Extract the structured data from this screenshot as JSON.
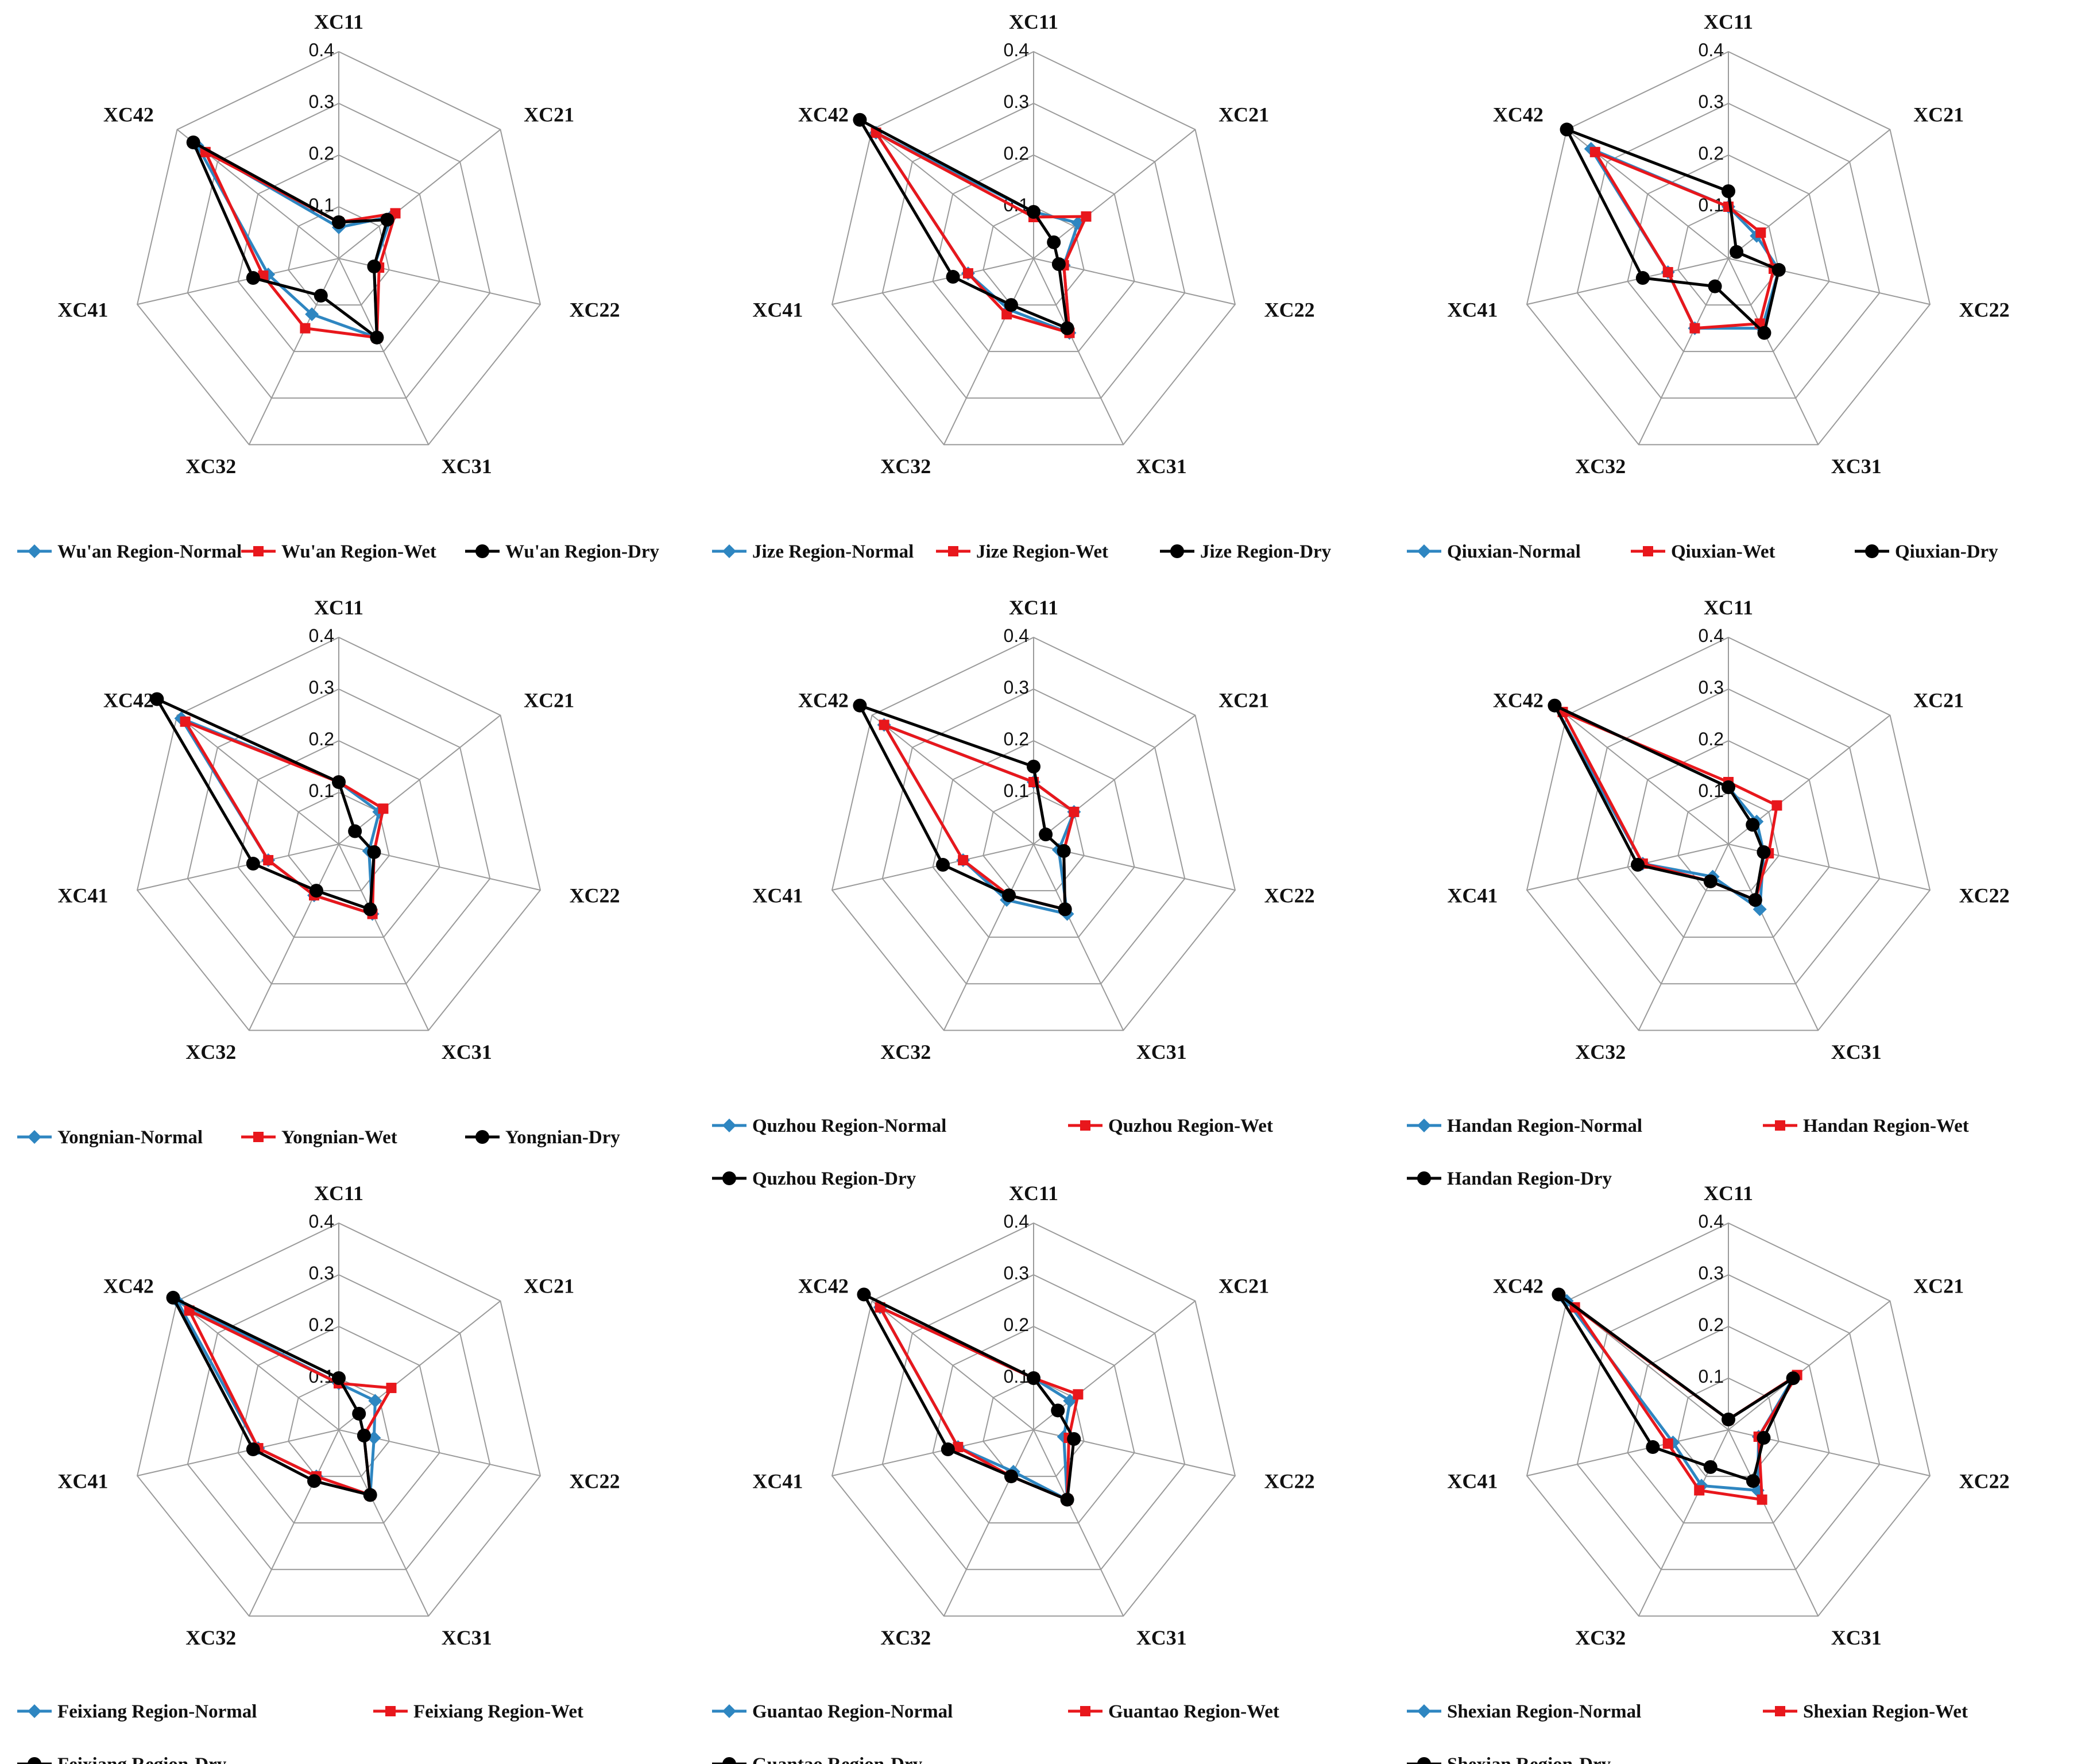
{
  "axis_labels": [
    "XC11",
    "XC21",
    "XC22",
    "XC31",
    "XC32",
    "XC41",
    "XC42"
  ],
  "ticks": [
    "0.1",
    "0.2",
    "0.3",
    "0.4"
  ],
  "colors": {
    "normal": "#2E86C1",
    "wet": "#E8171C",
    "dry": "#000000",
    "grid": "#9A9A9A"
  },
  "chart_data": [
    {
      "type": "radar",
      "title": "",
      "categories": [
        "XC11",
        "XC21",
        "XC22",
        "XC31",
        "XC32",
        "XC41",
        "XC42"
      ],
      "rlim": [
        0,
        0.4
      ],
      "ticks": [
        0.1,
        0.2,
        0.3,
        0.4
      ],
      "legend_layout": "row",
      "series": [
        {
          "name": "Wu'an Region-Normal",
          "color": "#2E86C1",
          "marker": "diamond",
          "values": [
            0.06,
            0.13,
            0.07,
            0.17,
            0.12,
            0.14,
            0.35
          ]
        },
        {
          "name": "Wu'an Region-Wet",
          "color": "#E8171C",
          "marker": "square",
          "values": [
            0.07,
            0.14,
            0.08,
            0.17,
            0.15,
            0.15,
            0.33
          ]
        },
        {
          "name": "Wu'an Region-Dry",
          "color": "#000000",
          "marker": "circle",
          "values": [
            0.07,
            0.12,
            0.07,
            0.17,
            0.08,
            0.17,
            0.36
          ]
        }
      ]
    },
    {
      "type": "radar",
      "title": "",
      "categories": [
        "XC11",
        "XC21",
        "XC22",
        "XC31",
        "XC32",
        "XC41",
        "XC42"
      ],
      "rlim": [
        0,
        0.4
      ],
      "ticks": [
        0.1,
        0.2,
        0.3,
        0.4
      ],
      "legend_layout": "row",
      "series": [
        {
          "name": "Jize Region-Normal",
          "color": "#2E86C1",
          "marker": "diamond",
          "values": [
            0.09,
            0.11,
            0.06,
            0.16,
            0.11,
            0.13,
            0.39
          ]
        },
        {
          "name": "Jize Region-Wet",
          "color": "#E8171C",
          "marker": "square",
          "values": [
            0.08,
            0.13,
            0.06,
            0.16,
            0.12,
            0.13,
            0.39
          ]
        },
        {
          "name": "Jize Region-Dry",
          "color": "#000000",
          "marker": "circle",
          "values": [
            0.09,
            0.05,
            0.05,
            0.15,
            0.1,
            0.16,
            0.43
          ]
        }
      ]
    },
    {
      "type": "radar",
      "title": "",
      "categories": [
        "XC11",
        "XC21",
        "XC22",
        "XC31",
        "XC32",
        "XC41",
        "XC42"
      ],
      "rlim": [
        0,
        0.4
      ],
      "ticks": [
        0.1,
        0.2,
        0.3,
        0.4
      ],
      "legend_layout": "row",
      "series": [
        {
          "name": "Qiuxian-Normal",
          "color": "#2E86C1",
          "marker": "diamond",
          "values": [
            0.1,
            0.07,
            0.1,
            0.15,
            0.15,
            0.12,
            0.34
          ]
        },
        {
          "name": "Qiuxian-Wet",
          "color": "#E8171C",
          "marker": "square",
          "values": [
            0.1,
            0.08,
            0.09,
            0.14,
            0.15,
            0.12,
            0.33
          ]
        },
        {
          "name": "Qiuxian-Dry",
          "color": "#000000",
          "marker": "circle",
          "values": [
            0.13,
            0.02,
            0.1,
            0.16,
            0.06,
            0.17,
            0.4
          ]
        }
      ]
    },
    {
      "type": "radar",
      "title": "",
      "categories": [
        "XC11",
        "XC21",
        "XC22",
        "XC31",
        "XC32",
        "XC41",
        "XC42"
      ],
      "rlim": [
        0,
        0.4
      ],
      "ticks": [
        0.1,
        0.2,
        0.3,
        0.4
      ],
      "legend_layout": "row",
      "series": [
        {
          "name": "Yongnian-Normal",
          "color": "#2E86C1",
          "marker": "diamond",
          "values": [
            0.12,
            0.1,
            0.06,
            0.15,
            0.11,
            0.14,
            0.39
          ]
        },
        {
          "name": "Yongnian-Wet",
          "color": "#E8171C",
          "marker": "square",
          "values": [
            0.12,
            0.11,
            0.07,
            0.15,
            0.11,
            0.14,
            0.38
          ]
        },
        {
          "name": "Yongnian-Dry",
          "color": "#000000",
          "marker": "circle",
          "values": [
            0.12,
            0.04,
            0.07,
            0.14,
            0.1,
            0.17,
            0.45
          ]
        }
      ]
    },
    {
      "type": "radar",
      "title": "",
      "categories": [
        "XC11",
        "XC21",
        "XC22",
        "XC31",
        "XC32",
        "XC41",
        "XC42"
      ],
      "rlim": [
        0,
        0.4
      ],
      "ticks": [
        0.1,
        0.2,
        0.3,
        0.4
      ],
      "legend_layout": "grid",
      "series": [
        {
          "name": "Quzhou Region-Normal",
          "color": "#2E86C1",
          "marker": "diamond",
          "values": [
            0.12,
            0.1,
            0.05,
            0.15,
            0.12,
            0.14,
            0.37
          ]
        },
        {
          "name": "Quzhou Region-Wet",
          "color": "#E8171C",
          "marker": "square",
          "values": [
            0.12,
            0.1,
            0.06,
            0.14,
            0.11,
            0.14,
            0.37
          ]
        },
        {
          "name": "Quzhou Region-Dry",
          "color": "#000000",
          "marker": "circle",
          "values": [
            0.15,
            0.03,
            0.06,
            0.14,
            0.11,
            0.18,
            0.43
          ]
        }
      ]
    },
    {
      "type": "radar",
      "title": "",
      "categories": [
        "XC11",
        "XC21",
        "XC22",
        "XC31",
        "XC32",
        "XC41",
        "XC42"
      ],
      "rlim": [
        0,
        0.4
      ],
      "ticks": [
        0.1,
        0.2,
        0.3,
        0.4
      ],
      "legend_layout": "grid",
      "series": [
        {
          "name": "Handan Region-Normal",
          "color": "#2E86C1",
          "marker": "diamond",
          "values": [
            0.11,
            0.07,
            0.07,
            0.14,
            0.07,
            0.17,
            0.43
          ]
        },
        {
          "name": "Handan Region-Wet",
          "color": "#E8171C",
          "marker": "square",
          "values": [
            0.12,
            0.12,
            0.08,
            0.12,
            0.08,
            0.17,
            0.41
          ]
        },
        {
          "name": "Handan Region-Dry",
          "color": "#000000",
          "marker": "circle",
          "values": [
            0.11,
            0.06,
            0.07,
            0.12,
            0.08,
            0.18,
            0.43
          ]
        }
      ]
    },
    {
      "type": "radar",
      "title": "",
      "categories": [
        "XC11",
        "XC21",
        "XC22",
        "XC31",
        "XC32",
        "XC41",
        "XC42"
      ],
      "rlim": [
        0,
        0.4
      ],
      "ticks": [
        0.1,
        0.2,
        0.3,
        0.4
      ],
      "legend_layout": "grid",
      "series": [
        {
          "name": "Feixiang Region-Normal",
          "color": "#2E86C1",
          "marker": "diamond",
          "values": [
            0.09,
            0.09,
            0.07,
            0.14,
            0.1,
            0.16,
            0.4
          ]
        },
        {
          "name": "Feixiang Region-Wet",
          "color": "#E8171C",
          "marker": "square",
          "values": [
            0.09,
            0.13,
            0.05,
            0.14,
            0.1,
            0.16,
            0.37
          ]
        },
        {
          "name": "Feixiang Region-Dry",
          "color": "#000000",
          "marker": "circle",
          "values": [
            0.1,
            0.05,
            0.05,
            0.14,
            0.11,
            0.17,
            0.41
          ]
        }
      ]
    },
    {
      "type": "radar",
      "title": "",
      "categories": [
        "XC11",
        "XC21",
        "XC22",
        "XC31",
        "XC32",
        "XC41",
        "XC42"
      ],
      "rlim": [
        0,
        0.4
      ],
      "ticks": [
        0.1,
        0.2,
        0.3,
        0.4
      ],
      "legend_layout": "grid",
      "series": [
        {
          "name": "Guantao Region-Normal",
          "color": "#2E86C1",
          "marker": "diamond",
          "values": [
            0.1,
            0.09,
            0.06,
            0.15,
            0.09,
            0.15,
            0.38
          ]
        },
        {
          "name": "Guantao Region-Wet",
          "color": "#E8171C",
          "marker": "square",
          "values": [
            0.1,
            0.11,
            0.07,
            0.15,
            0.1,
            0.15,
            0.38
          ]
        },
        {
          "name": "Guantao Region-Dry",
          "color": "#000000",
          "marker": "circle",
          "values": [
            0.1,
            0.06,
            0.08,
            0.15,
            0.1,
            0.17,
            0.42
          ]
        }
      ]
    },
    {
      "type": "radar",
      "title": "",
      "categories": [
        "XC11",
        "XC21",
        "XC22",
        "XC31",
        "XC32",
        "XC41",
        "XC42"
      ],
      "rlim": [
        0,
        0.4
      ],
      "ticks": [
        0.1,
        0.2,
        0.3,
        0.4
      ],
      "legend_layout": "grid",
      "series": [
        {
          "name": "Shexian Region-Normal",
          "color": "#2E86C1",
          "marker": "diamond",
          "values": [
            0.02,
            0.16,
            0.06,
            0.13,
            0.12,
            0.11,
            0.4
          ]
        },
        {
          "name": "Shexian Region-Wet",
          "color": "#E8171C",
          "marker": "square",
          "values": [
            0.02,
            0.17,
            0.06,
            0.15,
            0.13,
            0.12,
            0.38
          ]
        },
        {
          "name": "Shexian Region-Dry",
          "color": "#000000",
          "marker": "circle",
          "values": [
            0.02,
            0.16,
            0.07,
            0.11,
            0.08,
            0.15,
            0.42
          ]
        }
      ]
    }
  ]
}
